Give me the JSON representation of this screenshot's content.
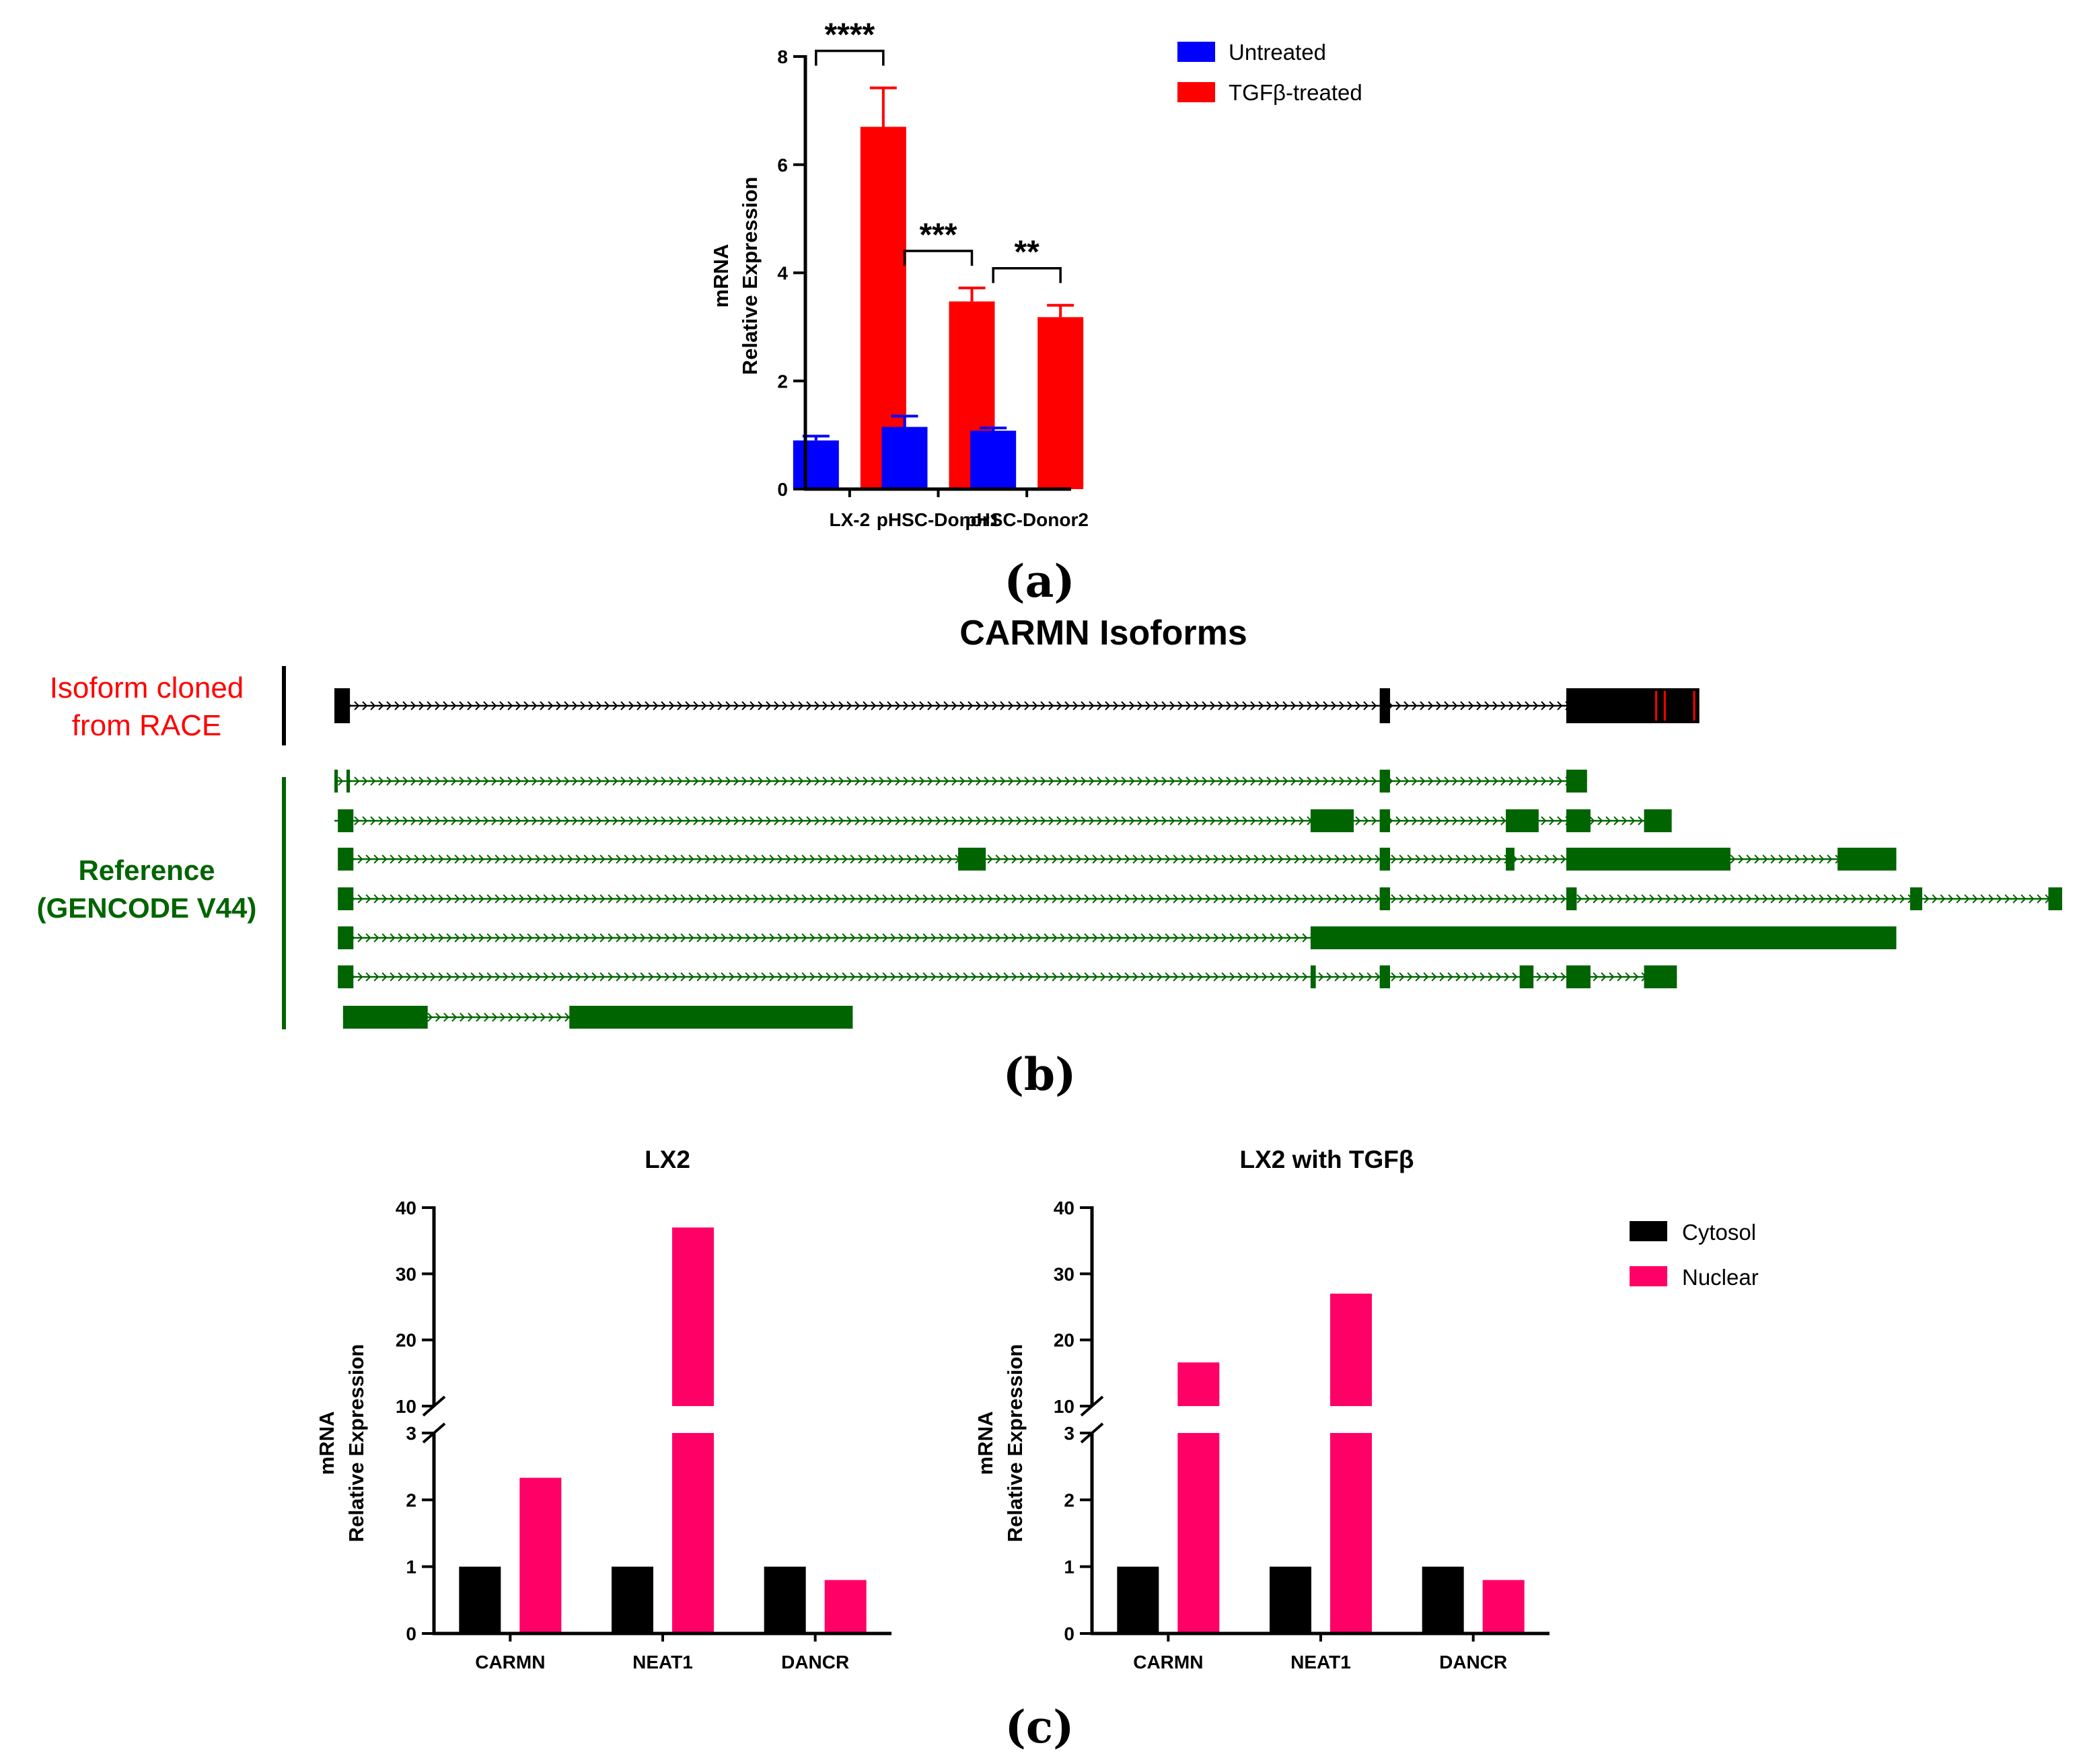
{
  "colors": {
    "untreated": "#0000ff",
    "tgfb": "#ff0000",
    "cytosol": "#000000",
    "nuclear": "#ff0066",
    "race": "#ff0000",
    "reference": "#006400",
    "exon_race": "#000000"
  },
  "chart_data": [
    {
      "panel": "a",
      "type": "bar",
      "panel_label": "(a)",
      "ylabel_line1": "mRNA",
      "ylabel_line2": "Relative Expression",
      "ylim": [
        0,
        8
      ],
      "yticks": [
        "0",
        "2",
        "4",
        "6",
        "8"
      ],
      "categories": [
        "LX-2",
        "pHSC-Donor1",
        "pHSC-Donor2"
      ],
      "series": [
        {
          "name": "Untreated",
          "values": [
            0.9,
            1.15,
            1.08
          ],
          "errors": [
            0.08,
            0.2,
            0.05
          ]
        },
        {
          "name": "TGFβ-treated",
          "values": [
            6.7,
            3.47,
            3.18
          ],
          "errors": [
            0.72,
            0.25,
            0.22
          ]
        }
      ],
      "significance": [
        "****",
        "***",
        "**"
      ]
    },
    {
      "panel": "c-left",
      "type": "bar",
      "title": "LX2",
      "ylabel_line1": "mRNA",
      "ylabel_line2": "Relative Expression",
      "broken_axis": true,
      "ylim_lower": [
        0,
        3
      ],
      "ylim_upper": [
        10,
        40
      ],
      "yticks_lower": [
        "0",
        "1",
        "2",
        "3"
      ],
      "yticks_upper": [
        "10",
        "20",
        "30",
        "40"
      ],
      "categories": [
        "CARMN",
        "NEAT1",
        "DANCR"
      ],
      "series": [
        {
          "name": "Cytosol",
          "values": [
            1.0,
            1.0,
            1.0
          ]
        },
        {
          "name": "Nuclear",
          "values": [
            2.33,
            37.0,
            0.8
          ]
        }
      ]
    },
    {
      "panel": "c-right",
      "type": "bar",
      "title": "LX2 with TGFβ",
      "ylabel_line1": "mRNA",
      "ylabel_line2": "Relative Expression",
      "broken_axis": true,
      "ylim_lower": [
        0,
        3
      ],
      "ylim_upper": [
        10,
        40
      ],
      "yticks_lower": [
        "0",
        "1",
        "2",
        "3"
      ],
      "yticks_upper": [
        "10",
        "20",
        "30",
        "40"
      ],
      "categories": [
        "CARMN",
        "NEAT1",
        "DANCR"
      ],
      "series": [
        {
          "name": "Cytosol",
          "values": [
            1.0,
            1.0,
            1.0
          ]
        },
        {
          "name": "Nuclear",
          "values": [
            16.6,
            27.0,
            0.8
          ]
        }
      ]
    }
  ],
  "legend_a": [
    "Untreated",
    "TGFβ-treated"
  ],
  "legend_c": [
    "Cytosol",
    "Nuclear"
  ],
  "panel_c_label": "(c)",
  "isoforms": {
    "title": "CARMN Isoforms",
    "panel_label": "(b)",
    "race_label_line1": "Isoform cloned",
    "race_label_line2": "from RACE",
    "ref_label_line1": "Reference",
    "ref_label_line2": "(GENCODE V44)",
    "coordinate_unit": "relative genomic position, 0–1000",
    "race_track": {
      "intron_span": [
        0,
        790
      ],
      "exons": [
        [
          0,
          9
        ],
        [
          605,
          611
        ],
        [
          713,
          790
        ]
      ],
      "red_marks": [
        765,
        770,
        787
      ]
    },
    "reference_tracks": [
      {
        "intron_span": [
          0,
          725
        ],
        "exons": [
          [
            0,
            2
          ],
          [
            7,
            9
          ],
          [
            605,
            611
          ],
          [
            713,
            725
          ]
        ]
      },
      {
        "intron_span": [
          0,
          770
        ],
        "exons": [
          [
            2,
            11
          ],
          [
            565,
            590
          ],
          [
            605,
            611
          ],
          [
            678,
            697
          ],
          [
            713,
            727
          ],
          [
            758,
            774
          ]
        ]
      },
      {
        "intron_span": [
          2,
          904
        ],
        "exons": [
          [
            2,
            11
          ],
          [
            361,
            377
          ],
          [
            605,
            611
          ],
          [
            678,
            683
          ],
          [
            713,
            808
          ],
          [
            870,
            904
          ]
        ]
      },
      {
        "intron_span": [
          2,
          1000
        ],
        "exons": [
          [
            2,
            11
          ],
          [
            605,
            611
          ],
          [
            713,
            719
          ],
          [
            912,
            919
          ],
          [
            992,
            1000
          ]
        ]
      },
      {
        "intron_span": [
          2,
          904
        ],
        "exons": [
          [
            2,
            11
          ],
          [
            565,
            904
          ]
        ]
      },
      {
        "intron_span": [
          2,
          777
        ],
        "exons": [
          [
            2,
            11
          ],
          [
            565,
            568
          ],
          [
            605,
            611
          ],
          [
            686,
            694
          ],
          [
            713,
            727
          ],
          [
            758,
            777
          ]
        ]
      },
      {
        "intron_span": [
          5,
          300
        ],
        "exons": [
          [
            5,
            54
          ],
          [
            136,
            300
          ]
        ]
      }
    ]
  }
}
